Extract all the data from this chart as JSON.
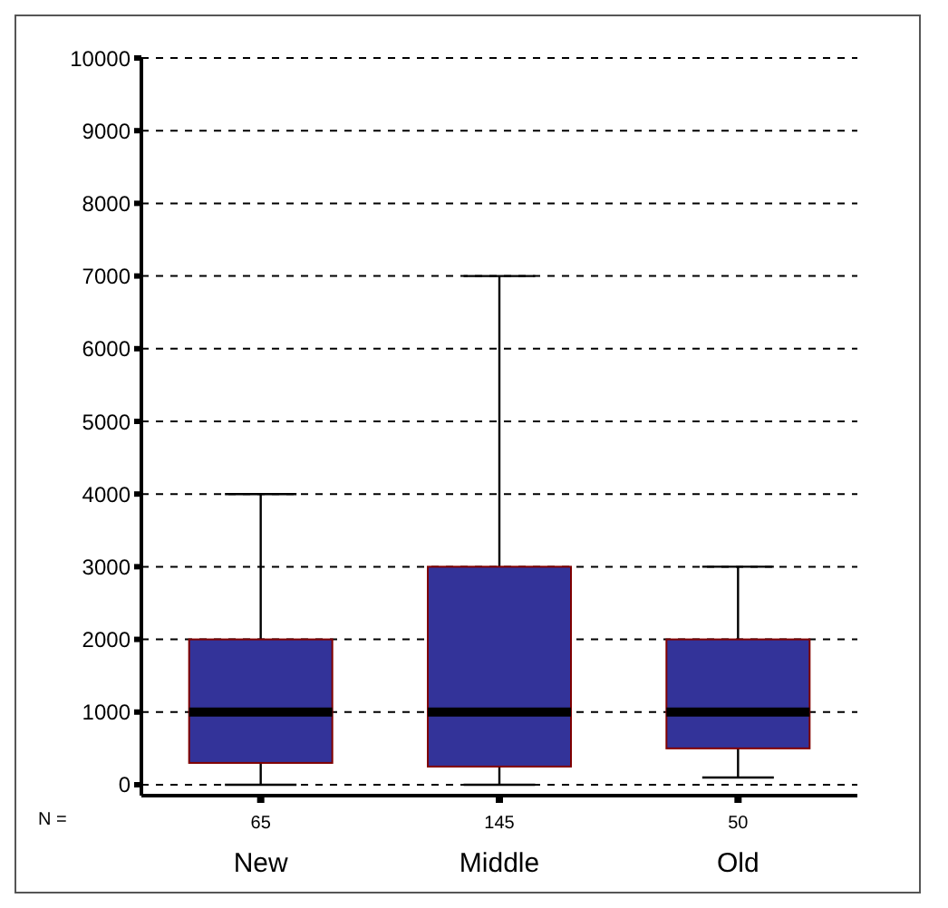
{
  "chart_data": {
    "type": "box",
    "categories": [
      "New",
      "Middle",
      "Old"
    ],
    "boxes": [
      {
        "low": 0,
        "q1": 300,
        "median": 1000,
        "q3": 2000,
        "high": 4000
      },
      {
        "low": 0,
        "q1": 250,
        "median": 1000,
        "q3": 3000,
        "high": 7000
      },
      {
        "low": 100,
        "q1": 500,
        "median": 1000,
        "q3": 2000,
        "high": 3000
      }
    ],
    "color": "#333399",
    "ylim": [
      -150,
      10000
    ],
    "yticks": [
      0,
      1000,
      2000,
      3000,
      4000,
      5000,
      6000,
      7000,
      8000,
      9000,
      10000
    ],
    "grid": "y",
    "annotations": [
      "N =",
      "65",
      "145",
      "50"
    ]
  }
}
